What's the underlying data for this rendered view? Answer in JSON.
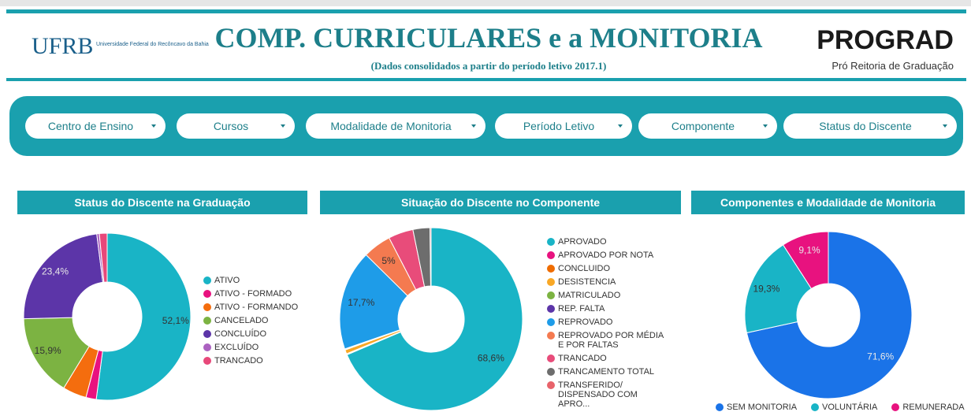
{
  "header": {
    "title": "COMP. CURRICULARES e a MONITORIA",
    "subtitle": "(Dados consolidados a partir do período letivo 2017.1)",
    "logo_left_mark": "UFRB",
    "logo_left_text": "Universidade Federal do Recôncavo da Bahia",
    "logo_right_mark": "PROGRAD",
    "logo_right_text": "Pró Reitoria de Graduação"
  },
  "filters": [
    "Centro de Ensino",
    "Cursos",
    "Modalidade de Monitoria",
    "Período Letivo",
    "Componente",
    "Status do Discente"
  ],
  "chart_data": [
    {
      "type": "pie",
      "title": "Status do Discente na Graduação",
      "categories": [
        "ATIVO",
        "ATIVO - FORMADO",
        "ATIVO - FORMANDO",
        "CANCELADO",
        "CONCLUÍDO",
        "EXCLUÍDO",
        "TRANCADO"
      ],
      "values": [
        52.1,
        2,
        4.6,
        15.9,
        23.4,
        0.5,
        1.5
      ],
      "value_labels": [
        "52,1%",
        null,
        null,
        "15,9%",
        "23,4%",
        null,
        null
      ],
      "colors": [
        "#19b4c6",
        "#e8127f",
        "#f46d0e",
        "#7cb342",
        "#5c35a8",
        "#ab62c0",
        "#e8487a"
      ],
      "legend": "right"
    },
    {
      "type": "pie",
      "title": "Situação do Discente no Componente",
      "categories": [
        "APROVADO",
        "APROVADO POR NOTA",
        "CONCLUIDO",
        "DESISTENCIA",
        "MATRICULADO",
        "REP. FALTA",
        "REPROVADO",
        "REPROVADO POR MÉDIA E POR FALTAS",
        "TRANCADO",
        "TRANCAMENTO TOTAL",
        "TRANSFERIDO/ DISPENSADO COM APRO..."
      ],
      "values": [
        68.6,
        0.1,
        0.1,
        0.7,
        0.1,
        0.1,
        17.7,
        5,
        4.4,
        3,
        0.2
      ],
      "value_labels": [
        "68,6%",
        null,
        null,
        null,
        null,
        null,
        "17,7%",
        "5%",
        null,
        null,
        null
      ],
      "colors": [
        "#19b4c6",
        "#e8127f",
        "#ef6c00",
        "#f9a825",
        "#7cb342",
        "#5c35a8",
        "#1e9ce8",
        "#f47a50",
        "#e84c7a",
        "#6d6d6d",
        "#e8636b"
      ],
      "legend": "right"
    },
    {
      "type": "pie",
      "title": "Componentes e Modalidade de Monitoria",
      "categories": [
        "SEM MONITORIA",
        "VOLUNTÁRIA",
        "REMUNERADA"
      ],
      "values": [
        71.6,
        19.3,
        9.1
      ],
      "value_labels": [
        "71,6%",
        "19,3%",
        "9,1%"
      ],
      "colors": [
        "#1a73e8",
        "#19b4c6",
        "#e8127f"
      ],
      "legend": "bottom"
    }
  ]
}
